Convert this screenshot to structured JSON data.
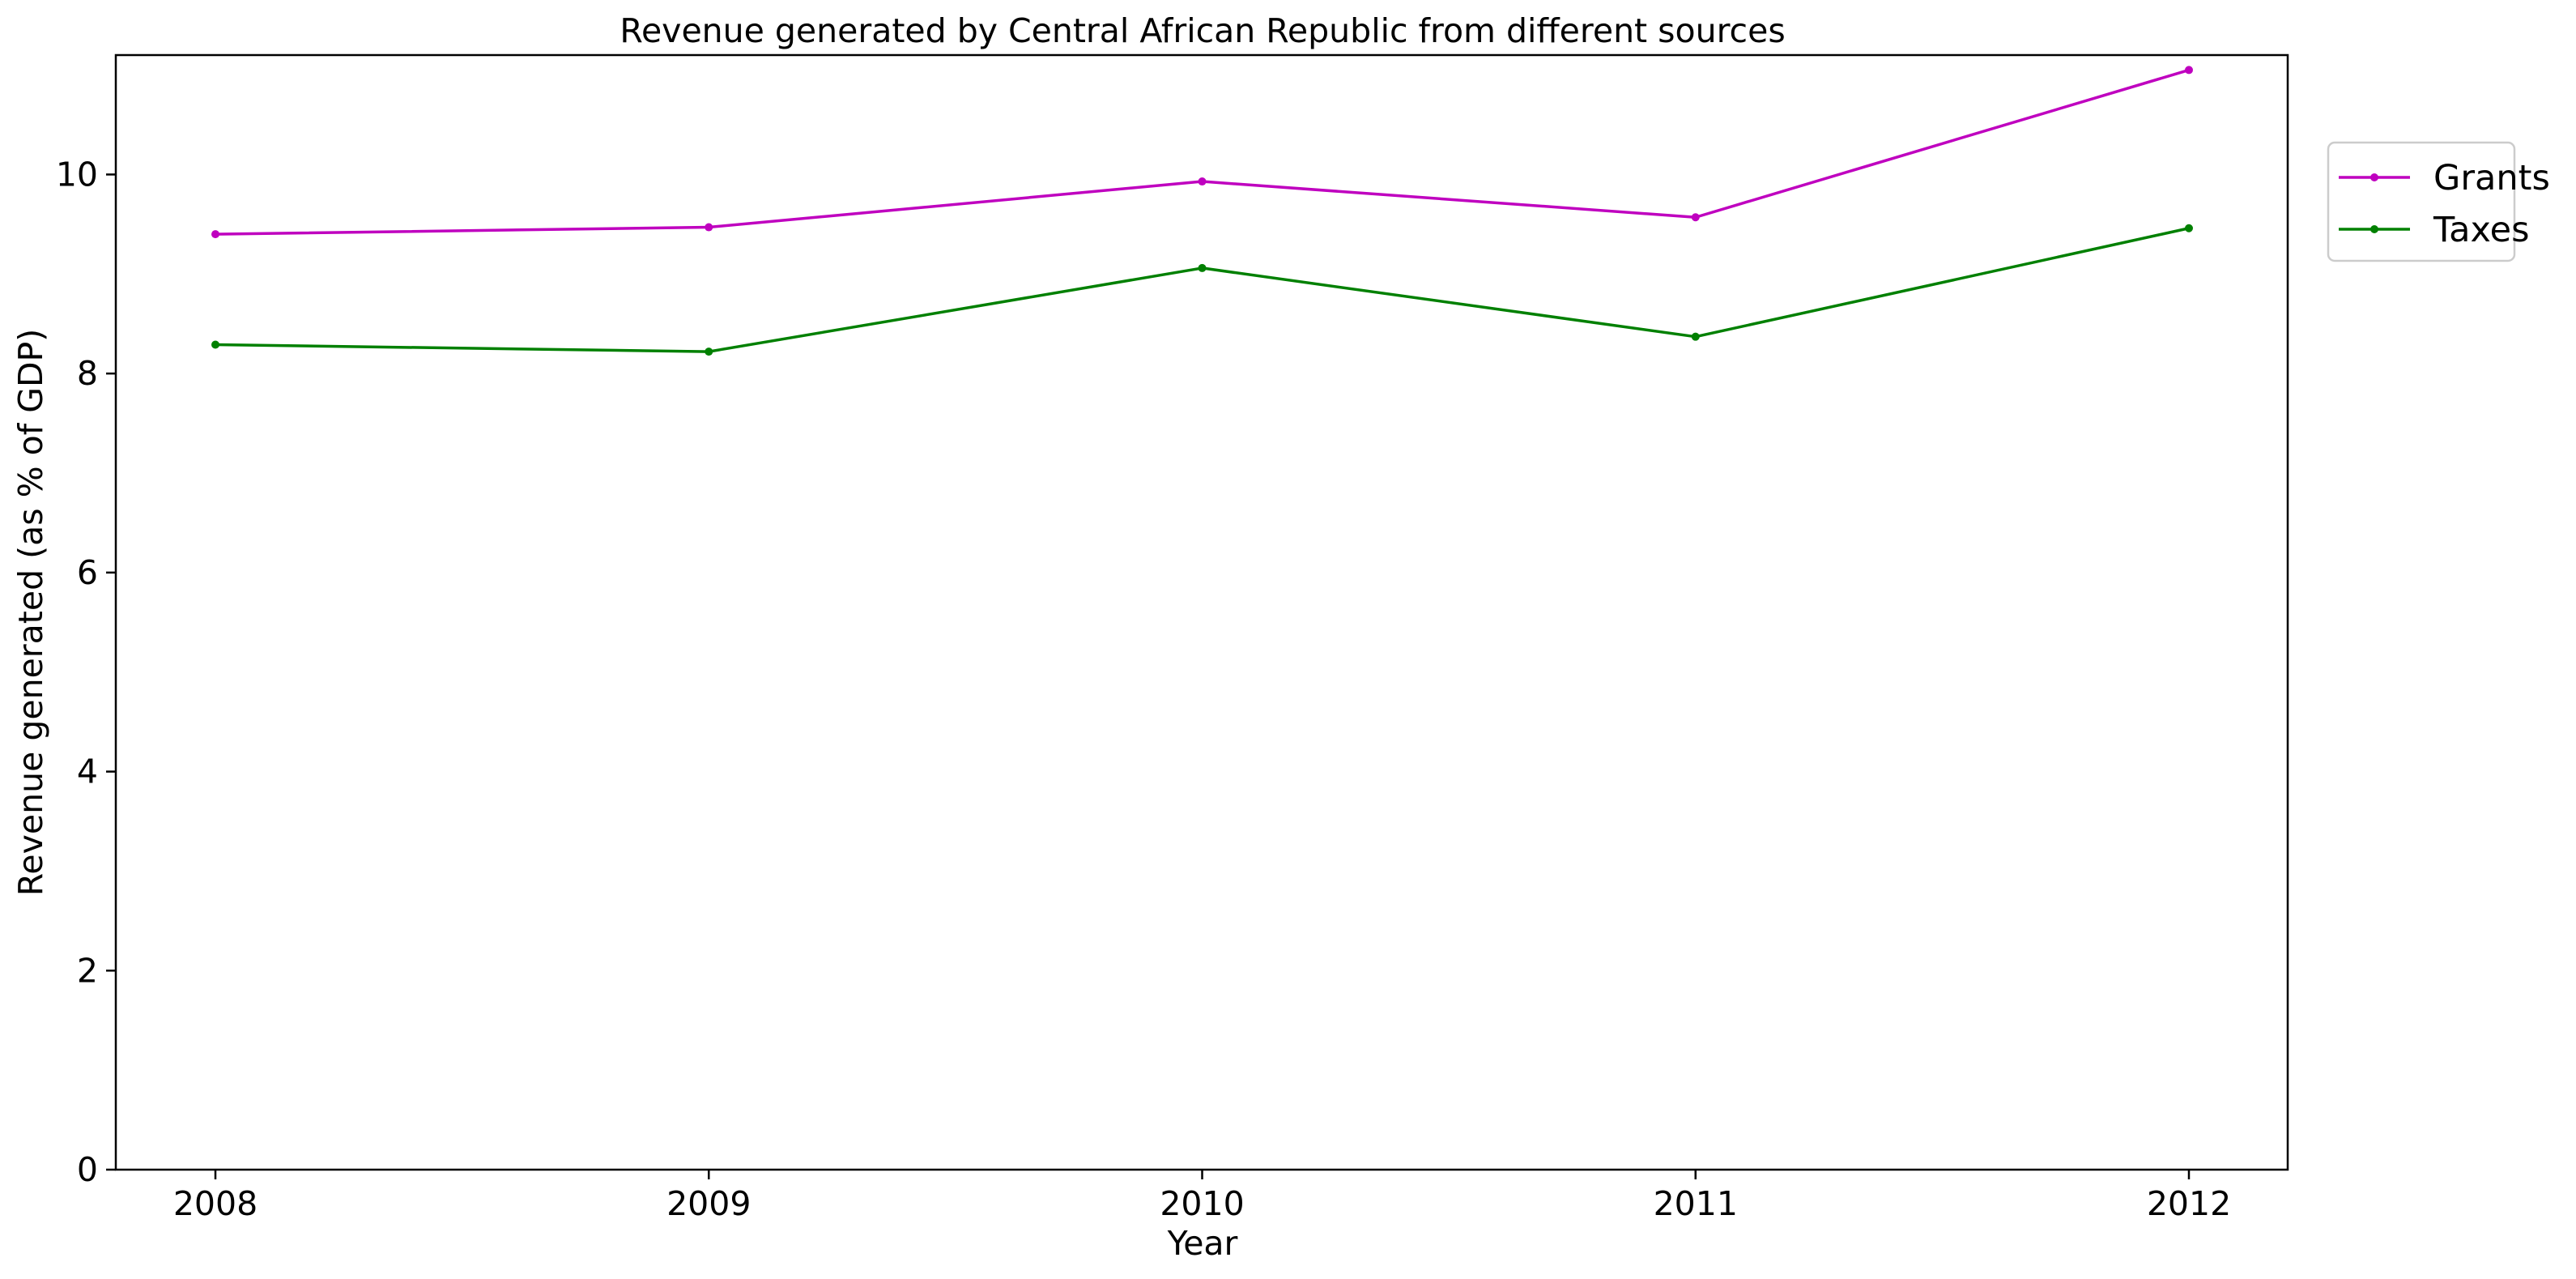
{
  "chart_data": {
    "type": "line",
    "title": "Revenue generated by Central African Republic from different sources",
    "xlabel": "Year",
    "ylabel": "Revenue generated (as % of GDP)",
    "x": [
      "2008",
      "2009",
      "2010",
      "2011",
      "2012"
    ],
    "ylim": [
      0,
      11.2
    ],
    "yticks": [
      0,
      2,
      4,
      6,
      8,
      10
    ],
    "grid": false,
    "legend_position": "outside-top-right",
    "series": [
      {
        "name": "Grants",
        "color": "#bf00bf",
        "marker": "circle",
        "values": [
          9.4,
          9.47,
          9.93,
          9.57,
          11.05
        ]
      },
      {
        "name": "Taxes",
        "color": "#008000",
        "marker": "circle",
        "values": [
          8.29,
          8.22,
          9.06,
          8.37,
          9.46
        ]
      }
    ]
  }
}
